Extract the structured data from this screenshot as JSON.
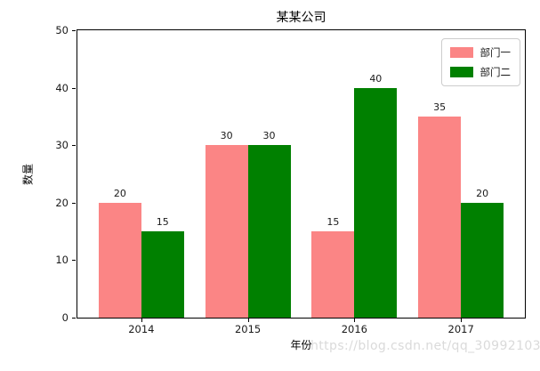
{
  "watermark": "https://blog.csdn.net/qq_30992103",
  "chart_data": {
    "type": "bar",
    "title": "某某公司",
    "xlabel": "年份",
    "ylabel": "数量",
    "categories": [
      "2014",
      "2015",
      "2016",
      "2017"
    ],
    "series": [
      {
        "name": "部门一",
        "color": "#fb8585",
        "values": [
          20,
          30,
          15,
          35
        ]
      },
      {
        "name": "部门二",
        "color": "#008000",
        "values": [
          15,
          30,
          40,
          20
        ]
      }
    ],
    "ylim": [
      0,
      50
    ],
    "yticks": [
      0,
      10,
      20,
      30,
      40,
      50
    ],
    "xlim": [
      -0.6,
      3.6
    ],
    "bar_width_units": 0.4,
    "grid": false,
    "value_labels": true,
    "legend_position": "upper right",
    "axis_color": "#000000",
    "watermark_color": "#dadada"
  }
}
